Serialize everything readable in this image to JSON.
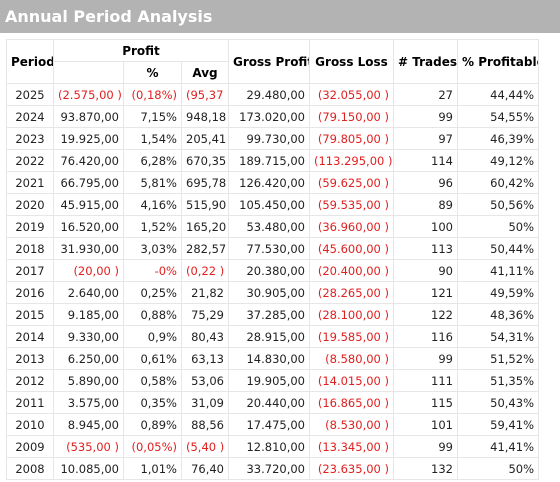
{
  "window": {
    "title": "Annual Period Analysis"
  },
  "table": {
    "headers": {
      "period": "Period",
      "profit": "Profit",
      "profit_pct": "%",
      "profit_avg": "Avg",
      "gross_profit": "Gross Profit",
      "gross_loss": "Gross Loss",
      "trades": "# Trades",
      "pct_profitable": "% Profitable"
    },
    "rows": [
      {
        "period": "2025",
        "profit": "(2.575,00 )",
        "pct": "(0,18%)",
        "avg": "(95,37 )",
        "gross_profit": "29.480,00",
        "gross_loss": "(32.055,00 )",
        "trades": "27",
        "pct_profitable": "44,44%",
        "neg": true
      },
      {
        "period": "2024",
        "profit": "93.870,00",
        "pct": "7,15%",
        "avg": "948,18",
        "gross_profit": "173.020,00",
        "gross_loss": "(79.150,00 )",
        "trades": "99",
        "pct_profitable": "54,55%",
        "neg": false
      },
      {
        "period": "2023",
        "profit": "19.925,00",
        "pct": "1,54%",
        "avg": "205,41",
        "gross_profit": "99.730,00",
        "gross_loss": "(79.805,00 )",
        "trades": "97",
        "pct_profitable": "46,39%",
        "neg": false
      },
      {
        "period": "2022",
        "profit": "76.420,00",
        "pct": "6,28%",
        "avg": "670,35",
        "gross_profit": "189.715,00",
        "gross_loss": "(113.295,00 )",
        "trades": "114",
        "pct_profitable": "49,12%",
        "neg": false
      },
      {
        "period": "2021",
        "profit": "66.795,00",
        "pct": "5,81%",
        "avg": "695,78",
        "gross_profit": "126.420,00",
        "gross_loss": "(59.625,00 )",
        "trades": "96",
        "pct_profitable": "60,42%",
        "neg": false
      },
      {
        "period": "2020",
        "profit": "45.915,00",
        "pct": "4,16%",
        "avg": "515,90",
        "gross_profit": "105.450,00",
        "gross_loss": "(59.535,00 )",
        "trades": "89",
        "pct_profitable": "50,56%",
        "neg": false
      },
      {
        "period": "2019",
        "profit": "16.520,00",
        "pct": "1,52%",
        "avg": "165,20",
        "gross_profit": "53.480,00",
        "gross_loss": "(36.960,00 )",
        "trades": "100",
        "pct_profitable": "50%",
        "neg": false
      },
      {
        "period": "2018",
        "profit": "31.930,00",
        "pct": "3,03%",
        "avg": "282,57",
        "gross_profit": "77.530,00",
        "gross_loss": "(45.600,00 )",
        "trades": "113",
        "pct_profitable": "50,44%",
        "neg": false
      },
      {
        "period": "2017",
        "profit": "(20,00 )",
        "pct": "-0%",
        "avg": "(0,22 )",
        "gross_profit": "20.380,00",
        "gross_loss": "(20.400,00 )",
        "trades": "90",
        "pct_profitable": "41,11%",
        "neg": true
      },
      {
        "period": "2016",
        "profit": "2.640,00",
        "pct": "0,25%",
        "avg": "21,82",
        "gross_profit": "30.905,00",
        "gross_loss": "(28.265,00 )",
        "trades": "121",
        "pct_profitable": "49,59%",
        "neg": false
      },
      {
        "period": "2015",
        "profit": "9.185,00",
        "pct": "0,88%",
        "avg": "75,29",
        "gross_profit": "37.285,00",
        "gross_loss": "(28.100,00 )",
        "trades": "122",
        "pct_profitable": "48,36%",
        "neg": false
      },
      {
        "period": "2014",
        "profit": "9.330,00",
        "pct": "0,9%",
        "avg": "80,43",
        "gross_profit": "28.915,00",
        "gross_loss": "(19.585,00 )",
        "trades": "116",
        "pct_profitable": "54,31%",
        "neg": false
      },
      {
        "period": "2013",
        "profit": "6.250,00",
        "pct": "0,61%",
        "avg": "63,13",
        "gross_profit": "14.830,00",
        "gross_loss": "(8.580,00 )",
        "trades": "99",
        "pct_profitable": "51,52%",
        "neg": false
      },
      {
        "period": "2012",
        "profit": "5.890,00",
        "pct": "0,58%",
        "avg": "53,06",
        "gross_profit": "19.905,00",
        "gross_loss": "(14.015,00 )",
        "trades": "111",
        "pct_profitable": "51,35%",
        "neg": false
      },
      {
        "period": "2011",
        "profit": "3.575,00",
        "pct": "0,35%",
        "avg": "31,09",
        "gross_profit": "20.440,00",
        "gross_loss": "(16.865,00 )",
        "trades": "115",
        "pct_profitable": "50,43%",
        "neg": false
      },
      {
        "period": "2010",
        "profit": "8.945,00",
        "pct": "0,89%",
        "avg": "88,56",
        "gross_profit": "17.475,00",
        "gross_loss": "(8.530,00 )",
        "trades": "101",
        "pct_profitable": "59,41%",
        "neg": false
      },
      {
        "period": "2009",
        "profit": "(535,00 )",
        "pct": "(0,05%)",
        "avg": "(5,40 )",
        "gross_profit": "12.810,00",
        "gross_loss": "(13.345,00 )",
        "trades": "99",
        "pct_profitable": "41,41%",
        "neg": true
      },
      {
        "period": "2008",
        "profit": "10.085,00",
        "pct": "1,01%",
        "avg": "76,40",
        "gross_profit": "33.720,00",
        "gross_loss": "(23.635,00 )",
        "trades": "132",
        "pct_profitable": "50%",
        "neg": false
      }
    ]
  },
  "colors": {
    "negative": "#e01f1f",
    "titlebar": "#b3b3b3",
    "grid": "#e6e6e6"
  }
}
